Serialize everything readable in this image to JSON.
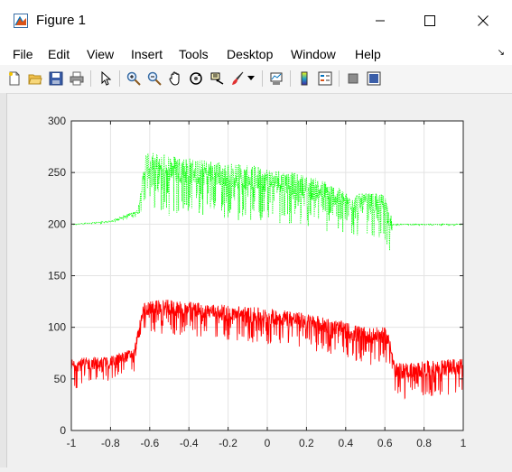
{
  "window": {
    "title": "Figure 1",
    "icon": "matlab-figure-icon",
    "controls": [
      "minimize-icon",
      "maximize-icon",
      "close-icon"
    ]
  },
  "menu": {
    "items": [
      "File",
      "Edit",
      "View",
      "Insert",
      "Tools",
      "Desktop",
      "Window",
      "Help"
    ],
    "overflow_arrow": "↘"
  },
  "toolbar": {
    "buttons": [
      "new-figure-icon",
      "open-file-icon",
      "save-icon",
      "print-icon",
      "pointer-icon",
      "zoom-in-icon",
      "zoom-out-icon",
      "pan-icon",
      "rotate-3d-icon",
      "data-cursor-icon",
      "brush-icon",
      "link-plot-icon",
      "colorbar-icon",
      "legend-icon",
      "hide-plot-tools-icon",
      "show-plot-tools-icon"
    ]
  },
  "chart_data": {
    "type": "line",
    "xlim": [
      -1,
      1
    ],
    "ylim": [
      0,
      300
    ],
    "xticks": [
      "-1",
      "-0.8",
      "-0.6",
      "-0.4",
      "-0.2",
      "0",
      "0.2",
      "0.4",
      "0.6",
      "0.8",
      "1"
    ],
    "yticks": [
      "0",
      "50",
      "100",
      "150",
      "200",
      "250",
      "300"
    ],
    "grid": true,
    "series": [
      {
        "color": "#00ff00",
        "style": "dotted",
        "upper_envelope": [
          [
            -1,
            200
          ],
          [
            -0.8,
            203
          ],
          [
            -0.66,
            214
          ],
          [
            -0.62,
            270
          ],
          [
            -0.5,
            268
          ],
          [
            -0.3,
            262
          ],
          [
            -0.1,
            258
          ],
          [
            0.1,
            252
          ],
          [
            0.3,
            242
          ],
          [
            0.4,
            232
          ],
          [
            0.45,
            230
          ],
          [
            0.6,
            230
          ],
          [
            0.63,
            210
          ],
          [
            0.64,
            200
          ],
          [
            1,
            200
          ]
        ],
        "lower_envelope": [
          [
            -1,
            199
          ],
          [
            -0.8,
            201
          ],
          [
            -0.66,
            207
          ],
          [
            -0.62,
            220
          ],
          [
            -0.5,
            208
          ],
          [
            -0.3,
            206
          ],
          [
            -0.1,
            203
          ],
          [
            0.1,
            200
          ],
          [
            0.3,
            192
          ],
          [
            0.4,
            190
          ],
          [
            0.45,
            188
          ],
          [
            0.6,
            183
          ],
          [
            0.63,
            170
          ],
          [
            0.64,
            199
          ],
          [
            1,
            199
          ]
        ]
      },
      {
        "color": "#ff0000",
        "style": "solid",
        "upper_envelope": [
          [
            -1,
            70
          ],
          [
            -0.8,
            72
          ],
          [
            -0.68,
            80
          ],
          [
            -0.63,
            125
          ],
          [
            -0.5,
            127
          ],
          [
            -0.3,
            123
          ],
          [
            -0.1,
            120
          ],
          [
            0.1,
            117
          ],
          [
            0.3,
            110
          ],
          [
            0.5,
            100
          ],
          [
            0.6,
            100
          ],
          [
            0.63,
            90
          ],
          [
            0.65,
            65
          ],
          [
            1,
            70
          ]
        ],
        "lower_envelope": [
          [
            -1,
            40
          ],
          [
            -0.8,
            48
          ],
          [
            -0.68,
            55
          ],
          [
            -0.63,
            95
          ],
          [
            -0.5,
            92
          ],
          [
            -0.3,
            90
          ],
          [
            -0.1,
            85
          ],
          [
            0.1,
            82
          ],
          [
            0.3,
            75
          ],
          [
            0.5,
            62
          ],
          [
            0.6,
            66
          ],
          [
            0.63,
            60
          ],
          [
            0.65,
            30
          ],
          [
            1,
            35
          ]
        ]
      }
    ]
  }
}
